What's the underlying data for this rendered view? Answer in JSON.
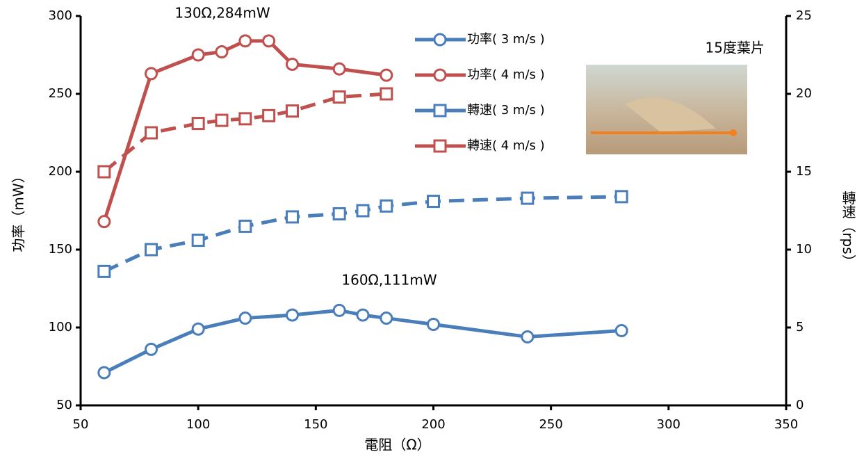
{
  "chart_data": {
    "type": "line",
    "xlabel": "電阻（Ω）",
    "ylabel": "功率（mW）",
    "y2label": "轉速（rps）",
    "xlim": [
      50,
      350
    ],
    "xticks": [
      50,
      100,
      150,
      200,
      250,
      300,
      350
    ],
    "ylim": [
      50,
      300
    ],
    "yticks": [
      50,
      100,
      150,
      200,
      250,
      300
    ],
    "y2lim": [
      0,
      25
    ],
    "y2ticks": [
      0,
      5,
      10,
      15,
      20,
      25
    ],
    "annotations": [
      {
        "text": "130Ω,284mW",
        "x": 130,
        "y": 284
      },
      {
        "text": "160Ω,111mW",
        "x": 160,
        "y": 111
      },
      {
        "text": "15度葉片"
      }
    ],
    "series": [
      {
        "name": "功率( 3 m/s )",
        "color": "#4a7ebb",
        "style": "solid",
        "marker": "circle",
        "x": [
          60,
          80,
          100,
          120,
          140,
          160,
          170,
          180,
          200,
          240,
          280
        ],
        "values": [
          71,
          86,
          99,
          106,
          108,
          111,
          108,
          106,
          102,
          94,
          98
        ]
      },
      {
        "name": "功率( 4 m/s )",
        "color": "#c0504d",
        "style": "solid",
        "marker": "circle",
        "x": [
          60,
          80,
          100,
          110,
          120,
          130,
          140,
          160,
          180
        ],
        "values": [
          168,
          263,
          275,
          277,
          284,
          284,
          269,
          266,
          262
        ]
      },
      {
        "name": "轉速( 3 m/s )",
        "color": "#4a7ebb",
        "style": "dashed",
        "marker": "square",
        "axis": "y2",
        "x": [
          60,
          80,
          100,
          120,
          140,
          160,
          170,
          180,
          200,
          240,
          280
        ],
        "values": [
          8.6,
          10.0,
          10.6,
          11.5,
          12.1,
          12.3,
          12.5,
          12.8,
          13.1,
          13.3,
          13.4
        ]
      },
      {
        "name": "轉速( 4 m/s )",
        "color": "#c0504d",
        "style": "dashed",
        "marker": "square",
        "axis": "y2",
        "x": [
          60,
          80,
          100,
          110,
          120,
          130,
          140,
          160,
          180
        ],
        "values": [
          15.0,
          17.5,
          18.1,
          18.3,
          18.4,
          18.6,
          18.9,
          19.8,
          20.0
        ]
      }
    ]
  }
}
